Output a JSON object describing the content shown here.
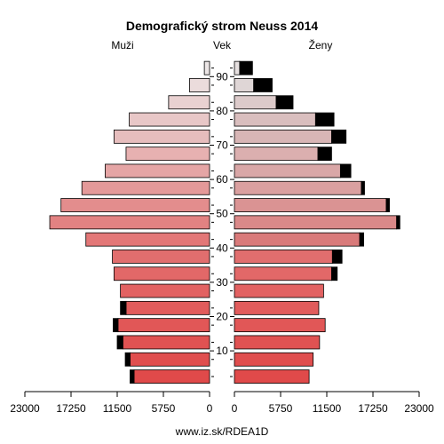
{
  "chart_data": {
    "type": "bar",
    "orientation": "horizontal-pyramid",
    "title": "Demografický strom Neuss 2014",
    "left_label": "Muži",
    "center_label": "Vek",
    "right_label": "Ženy",
    "source": "www.iz.sk/RDEA1D",
    "x_ticks_left": [
      "23000",
      "17250",
      "11500",
      "5750",
      "0"
    ],
    "x_ticks_right": [
      "0",
      "5750",
      "11500",
      "17250",
      "23000"
    ],
    "xlim": [
      0,
      23000
    ],
    "age_ticks": [
      "10",
      "20",
      "30",
      "40",
      "50",
      "60",
      "70",
      "80",
      "90"
    ],
    "age_groups": [
      "0-4",
      "5-9",
      "10-14",
      "15-19",
      "20-24",
      "25-29",
      "30-34",
      "35-39",
      "40-44",
      "45-49",
      "50-54",
      "55-59",
      "60-64",
      "65-69",
      "70-74",
      "75-79",
      "80-84",
      "85-89",
      "90+"
    ],
    "series": [
      {
        "name": "Muži",
        "side": "left",
        "values": [
          9400,
          9900,
          10800,
          11400,
          10400,
          11100,
          11900,
          12100,
          15400,
          19900,
          18500,
          15900,
          13000,
          10400,
          11900,
          10000,
          5100,
          2500,
          650
        ],
        "excess": [
          500,
          600,
          700,
          600,
          700,
          0,
          0,
          0,
          0,
          0,
          0,
          0,
          0,
          0,
          0,
          0,
          0,
          0,
          0
        ],
        "colors": [
          "#e04a4a",
          "#e04e4e",
          "#e05252",
          "#e15757",
          "#e15c5c",
          "#e26262",
          "#e26868",
          "#e16e6e",
          "#e37777",
          "#e28282",
          "#e38d8d",
          "#e49999",
          "#e5a5a5",
          "#e7b1b1",
          "#e6bdbd",
          "#e8c7c7",
          "#e9d1d1",
          "#ebdcdc",
          "#ece6e6"
        ]
      },
      {
        "name": "Ženy",
        "side": "right",
        "values": [
          9300,
          9800,
          10600,
          11300,
          10500,
          11100,
          12100,
          12200,
          15600,
          20200,
          18900,
          15800,
          13200,
          10400,
          12100,
          10100,
          5200,
          2400,
          650
        ],
        "excess": [
          0,
          0,
          0,
          0,
          0,
          0,
          700,
          1200,
          500,
          400,
          400,
          400,
          1300,
          1700,
          1800,
          2300,
          2100,
          2300,
          1600
        ],
        "colors": [
          "#e04a4a",
          "#e04e4e",
          "#e05252",
          "#e15757",
          "#e15c5c",
          "#e26262",
          "#e26868",
          "#e16e6e",
          "#d97a7a",
          "#da8989",
          "#da9393",
          "#daa0a0",
          "#d9a7a7",
          "#dbafaf",
          "#d8b6b6",
          "#d9bebe",
          "#dccaca",
          "#dfd6d6",
          "#e6e0e0"
        ]
      }
    ],
    "excess_color": "#000000"
  }
}
